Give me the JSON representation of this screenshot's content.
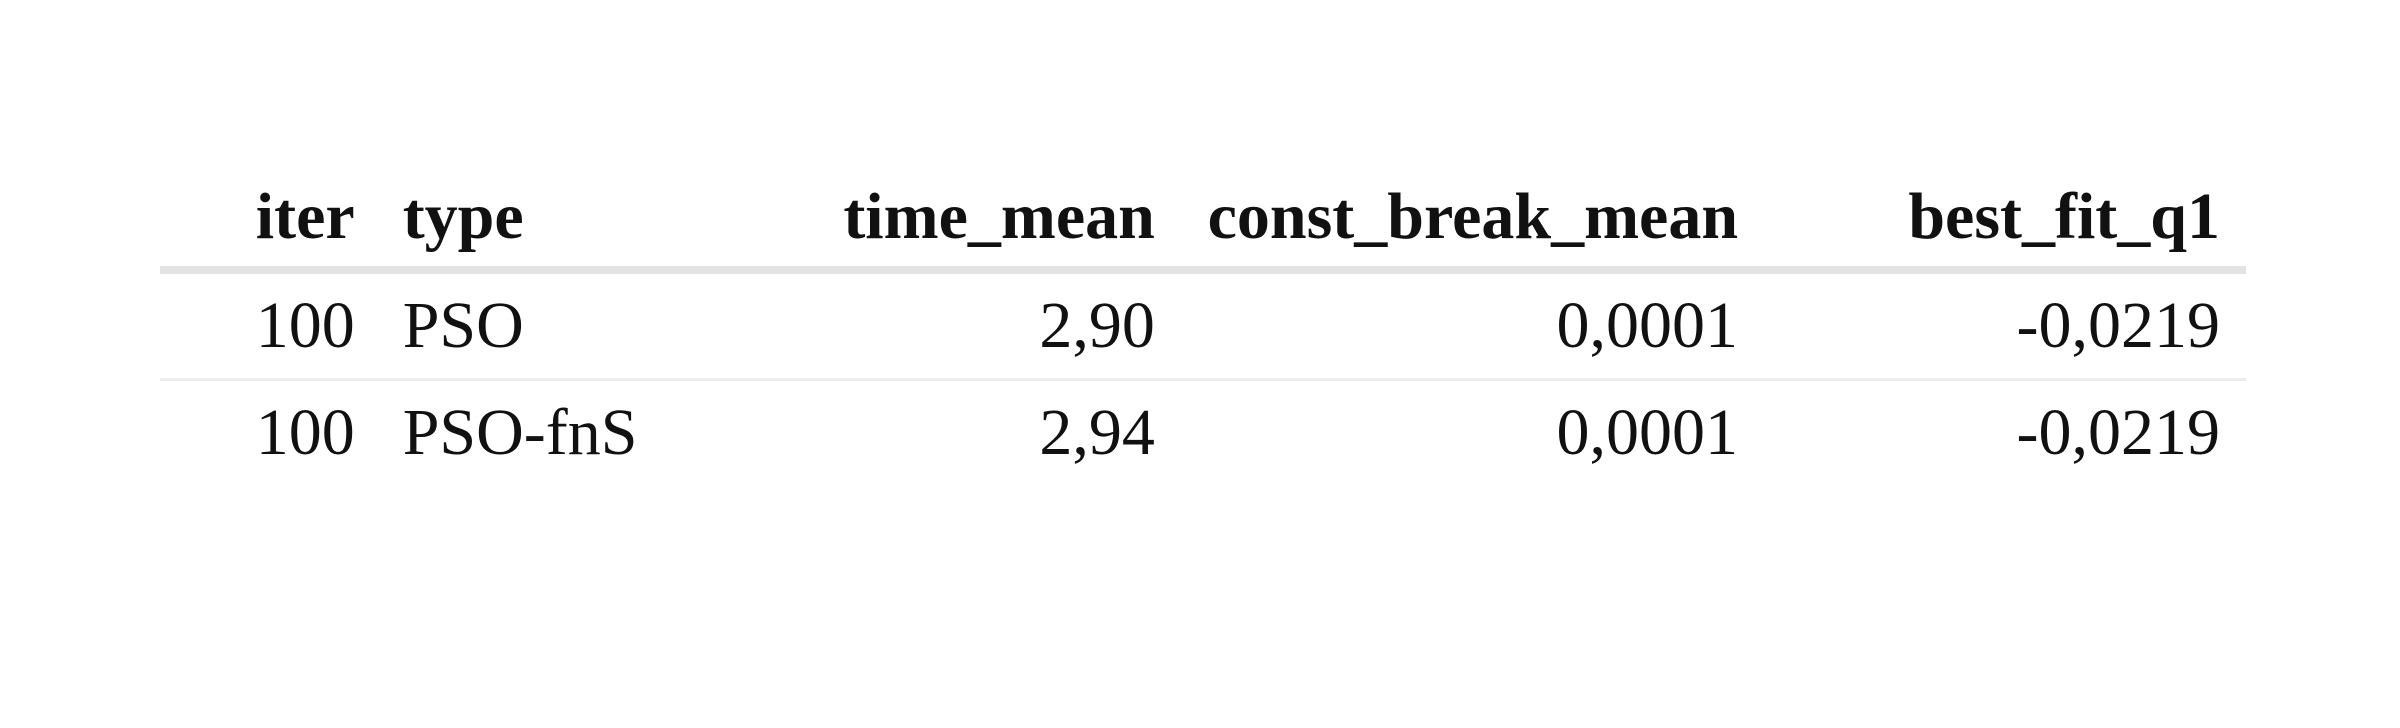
{
  "table": {
    "columns": [
      "iter",
      "type",
      "time_mean",
      "const_break_mean",
      "best_fit_q1"
    ],
    "rows": [
      [
        "100",
        "PSO",
        "2,90",
        "0,0001",
        "-0,0219"
      ],
      [
        "100",
        "PSO-fnS",
        "2,94",
        "0,0001",
        "-0,0219"
      ]
    ]
  }
}
